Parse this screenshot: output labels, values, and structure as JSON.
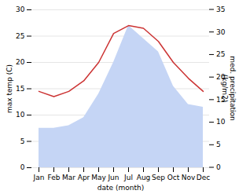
{
  "chart_data": {
    "type": "line",
    "categories": [
      "Jan",
      "Feb",
      "Mar",
      "Apr",
      "May",
      "Jun",
      "Jul",
      "Aug",
      "Sep",
      "Oct",
      "Nov",
      "Dec"
    ],
    "series": [
      {
        "type": "area",
        "color": "#c5d5f5",
        "values": [
          7.5,
          7.5,
          8.0,
          9.5,
          14.0,
          20.0,
          27.0,
          24.5,
          22.0,
          15.5,
          12.0,
          11.5
        ]
      },
      {
        "type": "line",
        "color": "#cc3333",
        "values": [
          14.5,
          13.5,
          14.5,
          16.5,
          20.0,
          25.5,
          27.0,
          26.5,
          24.0,
          20.0,
          17.0,
          14.5
        ]
      }
    ],
    "xlabel": "date (month)",
    "ylabel": "max temp (C)",
    "y2label": "med. precipitation\n(kg/m2)",
    "ylim": [
      0,
      30
    ],
    "yticks": [
      0,
      5,
      10,
      15,
      20,
      25,
      30
    ],
    "y2lim": [
      0,
      35
    ],
    "y2ticks": [
      0,
      5,
      10,
      15,
      20,
      25,
      30,
      35
    ],
    "grid": true
  }
}
